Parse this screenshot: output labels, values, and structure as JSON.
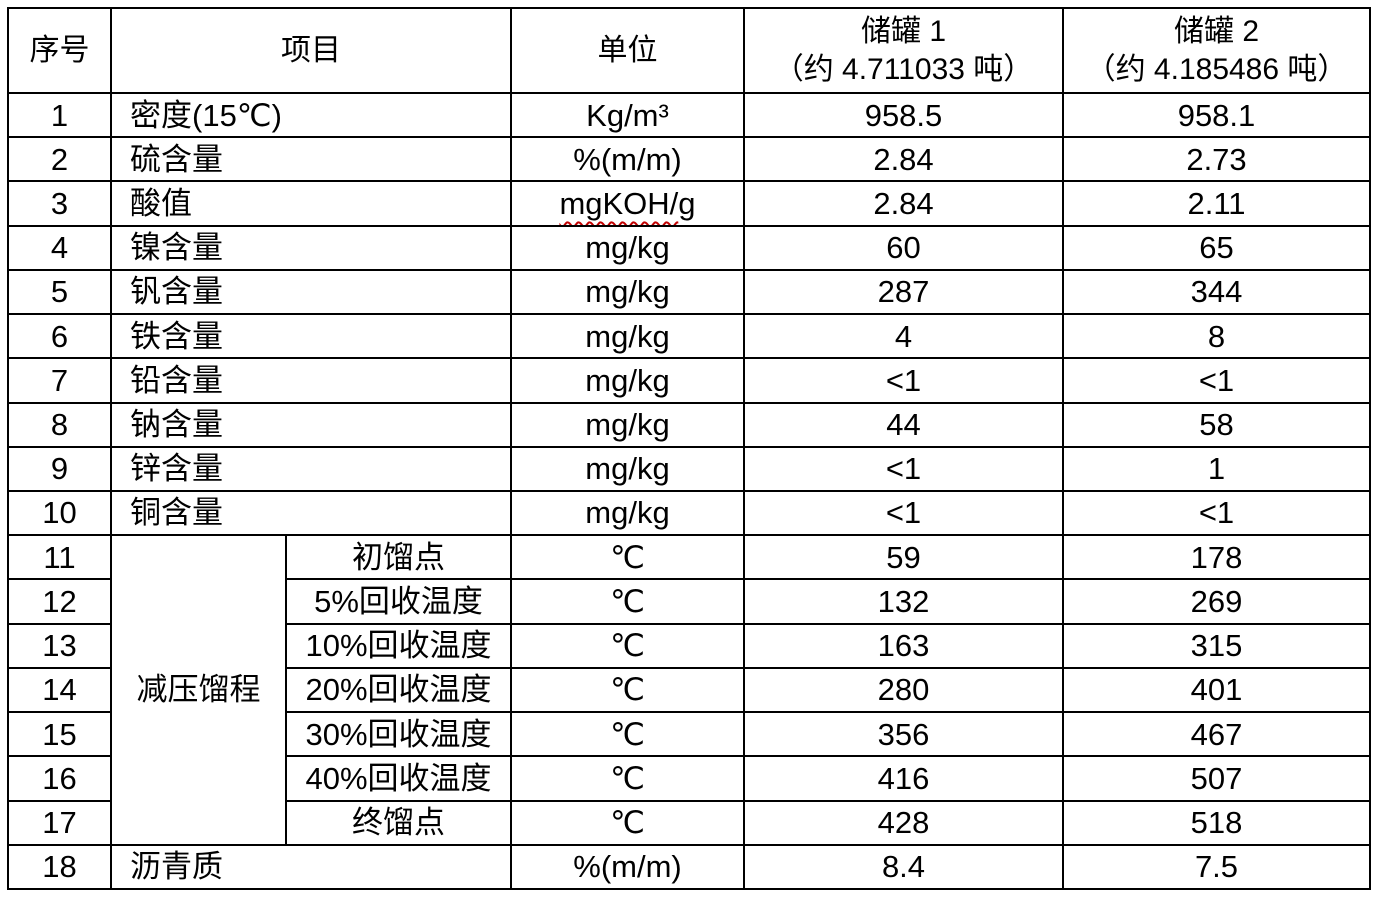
{
  "table": {
    "header": {
      "no": "序号",
      "item": "项目",
      "unit": "单位",
      "tank1_line1": "储罐 1",
      "tank1_line2": "（约 4.711033 吨）",
      "tank2_line1": "储罐 2",
      "tank2_line2": "（约 4.185486 吨）"
    },
    "group_label": "减压馏程",
    "group_rowspan": 7,
    "rows": [
      {
        "no": "1",
        "item": "密度(15℃)",
        "unit": "Kg/m³",
        "tank1": "958.5",
        "tank2": "958.1"
      },
      {
        "no": "2",
        "item": "硫含量",
        "unit": "%(m/m)",
        "tank1": "2.84",
        "tank2": "2.73"
      },
      {
        "no": "3",
        "item": "酸值",
        "unit": "mgKOH/g",
        "unit_wavy_prefix": "mgKOH/",
        "unit_plain_suffix": "g",
        "tank1": "2.84",
        "tank2": "2.11"
      },
      {
        "no": "4",
        "item": "镍含量",
        "unit": "mg/kg",
        "tank1": "60",
        "tank2": "65"
      },
      {
        "no": "5",
        "item": "钒含量",
        "unit": "mg/kg",
        "tank1": "287",
        "tank2": "344"
      },
      {
        "no": "6",
        "item": "铁含量",
        "unit": "mg/kg",
        "tank1": "4",
        "tank2": "8"
      },
      {
        "no": "7",
        "item": "铅含量",
        "unit": "mg/kg",
        "tank1": "<1",
        "tank2": "<1"
      },
      {
        "no": "8",
        "item": "钠含量",
        "unit": "mg/kg",
        "tank1": "44",
        "tank2": "58"
      },
      {
        "no": "9",
        "item": "锌含量",
        "unit": "mg/kg",
        "tank1": "<1",
        "tank2": "1"
      },
      {
        "no": "10",
        "item": "铜含量",
        "unit": "mg/kg",
        "tank1": "<1",
        "tank2": "<1"
      },
      {
        "no": "11",
        "group": "减压馏程",
        "sub": "初馏点",
        "unit": "℃",
        "tank1": "59",
        "tank2": "178"
      },
      {
        "no": "12",
        "sub": "5%回收温度",
        "unit": "℃",
        "tank1": "132",
        "tank2": "269"
      },
      {
        "no": "13",
        "sub": "10%回收温度",
        "unit": "℃",
        "tank1": "163",
        "tank2": "315"
      },
      {
        "no": "14",
        "sub": "20%回收温度",
        "unit": "℃",
        "tank1": "280",
        "tank2": "401"
      },
      {
        "no": "15",
        "sub": "30%回收温度",
        "unit": "℃",
        "tank1": "356",
        "tank2": "467"
      },
      {
        "no": "16",
        "sub": "40%回收温度",
        "unit": "℃",
        "tank1": "416",
        "tank2": "507"
      },
      {
        "no": "17",
        "sub": "终馏点",
        "unit": "℃",
        "tank1": "428",
        "tank2": "518"
      },
      {
        "no": "18",
        "item": "沥青质",
        "unit": "%(m/m)",
        "tank1": "8.4",
        "tank2": "7.5"
      }
    ]
  },
  "colors": {
    "text": "#000000",
    "border": "#000000",
    "background": "#ffffff",
    "spellcheck_underline": "#c00000"
  }
}
